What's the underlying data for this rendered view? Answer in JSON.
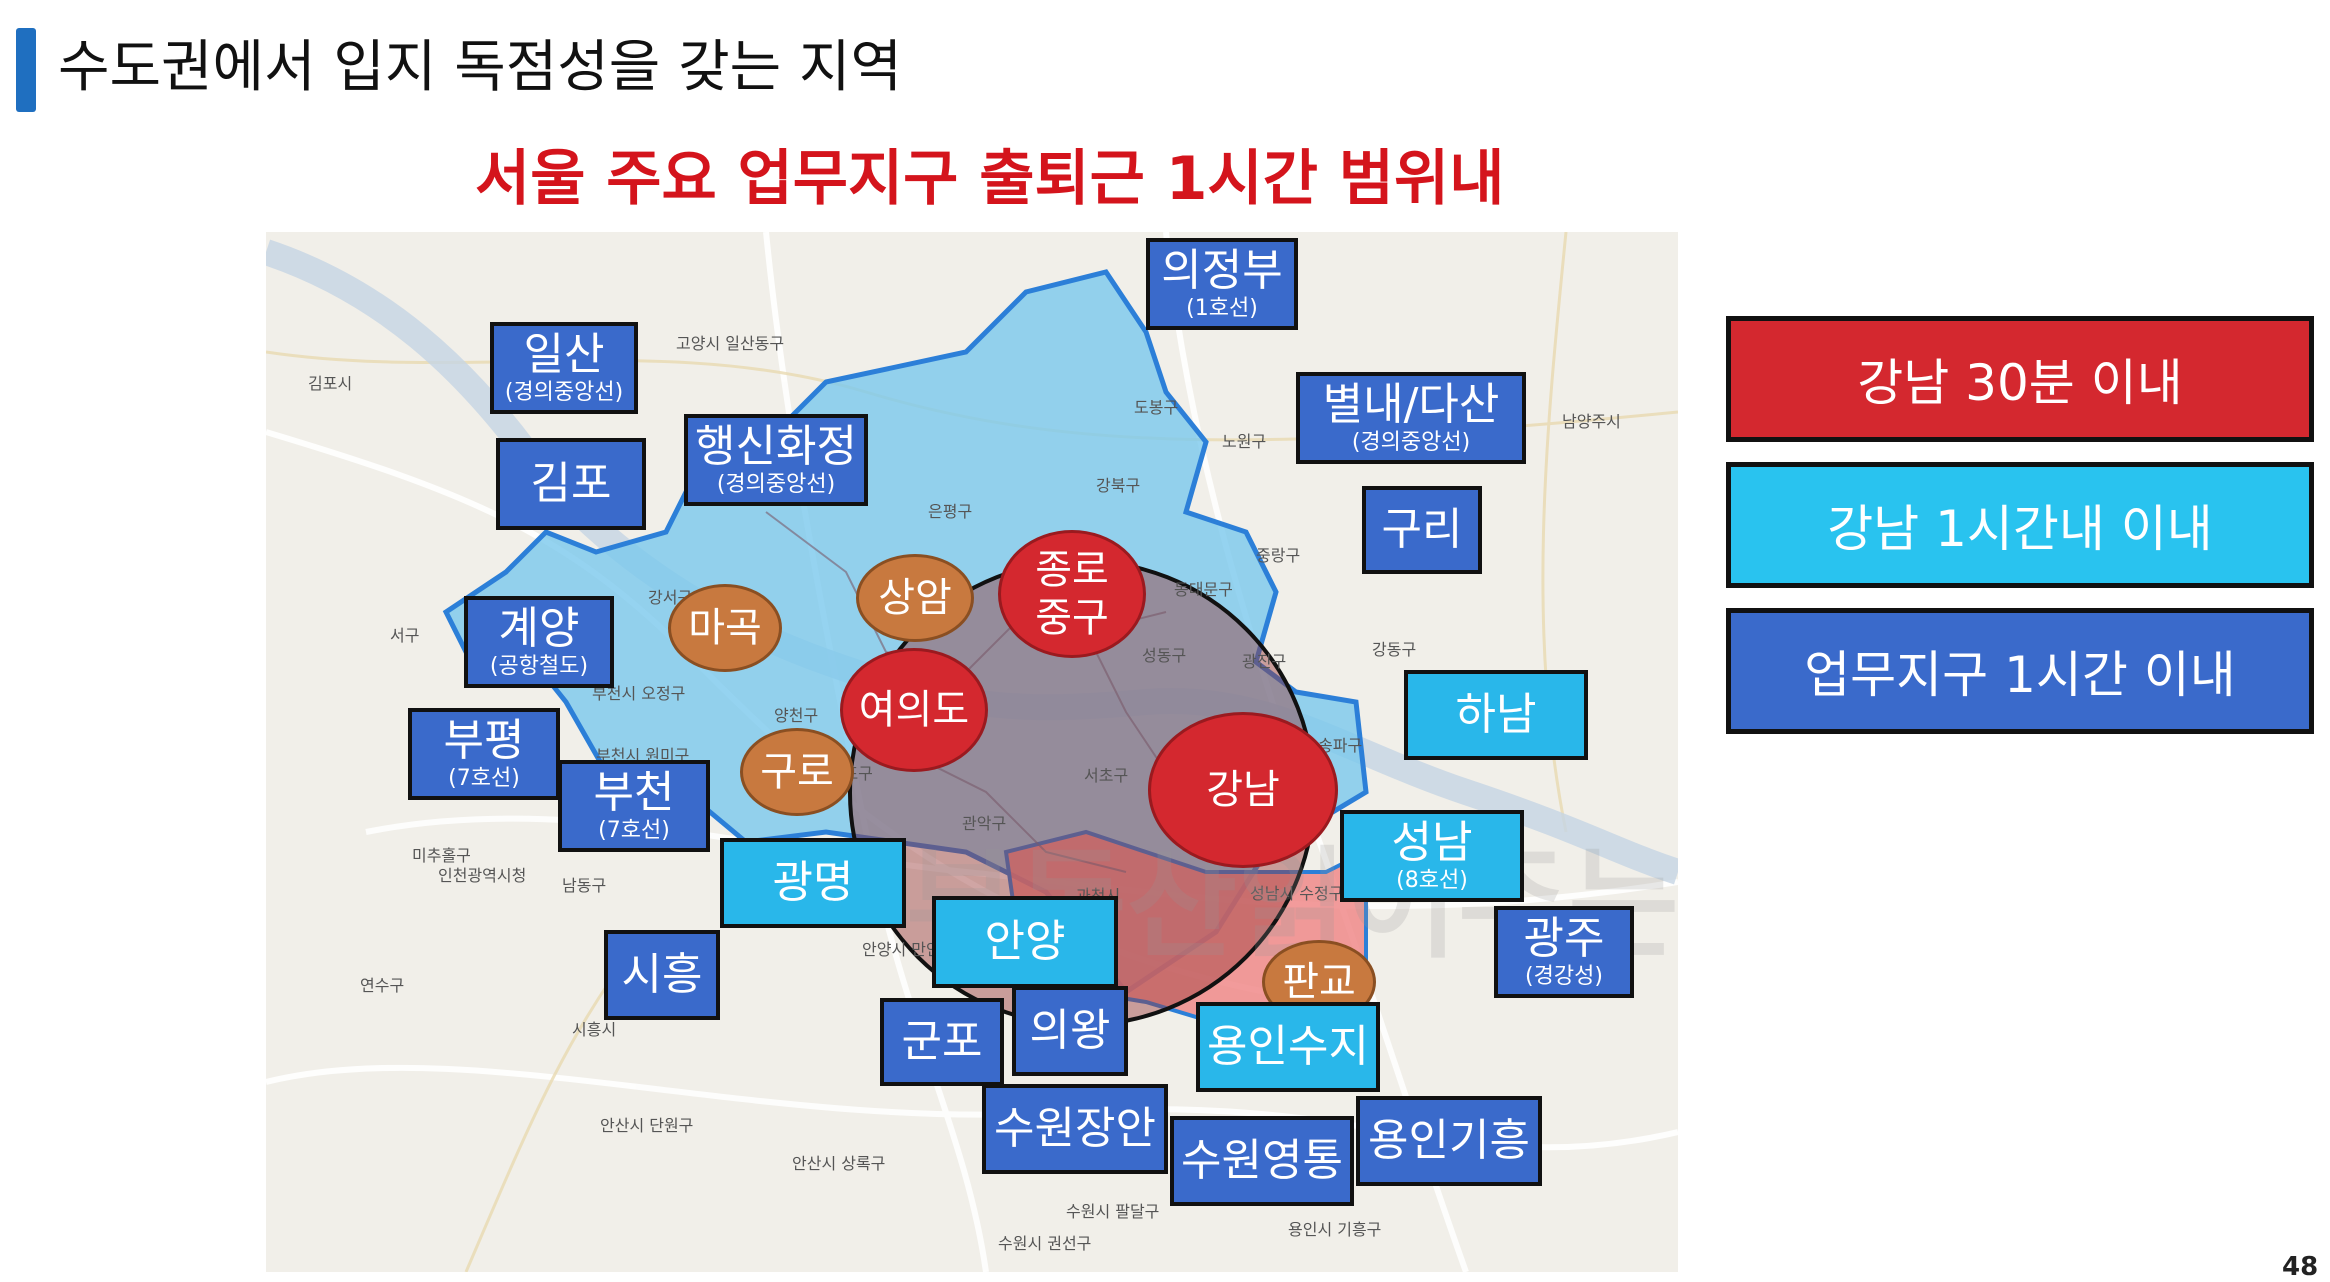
{
  "page": {
    "title": "수도권에서 입지 독점성을 갖는 지역",
    "subtitle": "서울 주요 업무지구 출퇴근 1시간 범위내",
    "page_number": "48"
  },
  "watermark": "부동산읽어주는남자",
  "map_place_names": [
    "고양시 일산동구",
    "김포시",
    "남양주시",
    "은평구",
    "도봉구",
    "노원구",
    "강북구",
    "동대문구",
    "성동구",
    "광진구",
    "중랑구",
    "강동구",
    "양천구",
    "서초구",
    "관악구",
    "과천시",
    "송파구",
    "성남시 수정구",
    "안양시 만안구",
    "연수구",
    "시흥시",
    "안산시 단원구",
    "안산시 상록구",
    "수원시 팔달구",
    "수원시 권선구",
    "용인시 기흥구",
    "미추홀구",
    "인천광역시청",
    "남동구",
    "서구",
    "부천시 오정구",
    "부천시 원미구",
    "영등포구",
    "강서구"
  ],
  "bubbles": {
    "jongno": "종로\n중구",
    "yeouido": "여의도",
    "gangnam": "강남",
    "sangam": "상암",
    "magok": "마곡",
    "guro": "구로",
    "pangyo": "판교"
  },
  "labels": {
    "ilsan": {
      "main": "일산",
      "sub": "(경의중앙선)"
    },
    "gimpo": {
      "main": "김포"
    },
    "haengsin": {
      "main": "행신화정",
      "sub": "(경의중앙선)"
    },
    "uijeongbu": {
      "main": "의정부",
      "sub": "(1호선)"
    },
    "byeollae": {
      "main": "별내/다산",
      "sub": "(경의중앙선)"
    },
    "guri": {
      "main": "구리"
    },
    "gyeyang": {
      "main": "계양",
      "sub": "(공항철도)"
    },
    "bupyeong": {
      "main": "부평",
      "sub": "(7호선)"
    },
    "bucheon": {
      "main": "부천",
      "sub": "(7호선)"
    },
    "hanam": {
      "main": "하남"
    },
    "gwangmyeong": {
      "main": "광명"
    },
    "seongnam": {
      "main": "성남",
      "sub": "(8호선)"
    },
    "gwangju": {
      "main": "광주",
      "sub": "(경강성)"
    },
    "anyang": {
      "main": "안양"
    },
    "siheung": {
      "main": "시흥"
    },
    "gunpo": {
      "main": "군포"
    },
    "uiwang": {
      "main": "의왕"
    },
    "yonginsuji": {
      "main": "용인수지"
    },
    "suwonjangan": {
      "main": "수원장안"
    },
    "suwonyeongtong": {
      "main": "수원영통"
    },
    "yonginGiheung": {
      "main": "용인기흥"
    }
  },
  "legend": [
    {
      "label": "강남  30분 이내",
      "color": "#d4282f"
    },
    {
      "label": "강남  1시간내 이내",
      "color": "#29c3ef"
    },
    {
      "label": "업무지구 1시간 이내",
      "color": "#3a6acb"
    }
  ]
}
